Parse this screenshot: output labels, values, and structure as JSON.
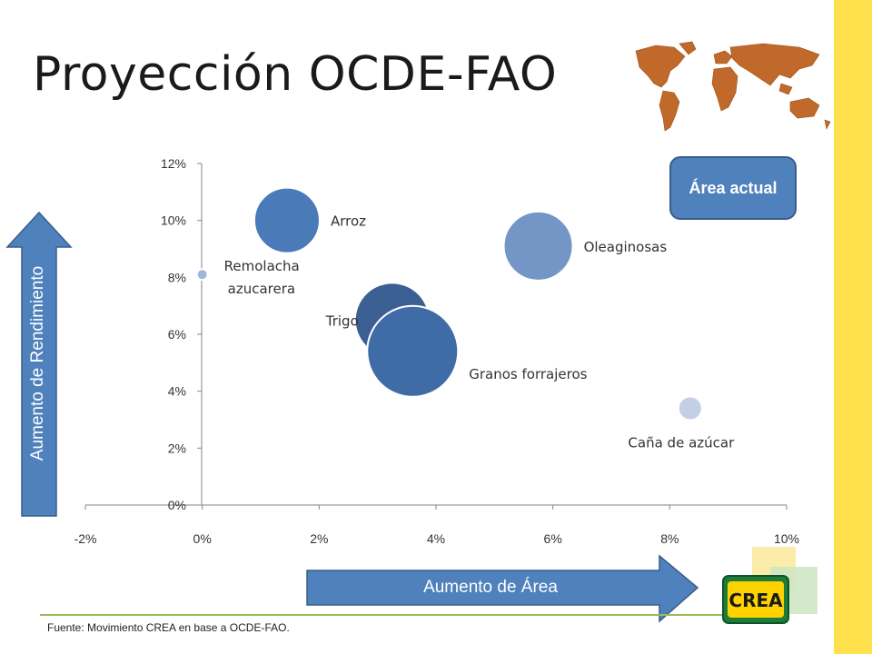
{
  "page": {
    "title": "Proyección OCDE-FAO",
    "source": "Fuente: Movimiento CREA en base a OCDE-FAO.",
    "logo_text": "CREA"
  },
  "legend": {
    "bubble_meaning": "Área actual"
  },
  "arrows": {
    "x_label": "Aumento de Área",
    "y_label": "Aumento de Rendimiento"
  },
  "colors": {
    "accent": "#4f81bd",
    "stripe": "#ffe14d",
    "footer_line": "#9bbb59",
    "map": "#c0692a"
  },
  "chart_data": {
    "type": "bubble",
    "title": "",
    "xlabel": "",
    "ylabel": "",
    "xlim": [
      -0.02,
      0.1
    ],
    "ylim": [
      0,
      0.12
    ],
    "x_ticks": [
      "-2%",
      "0%",
      "2%",
      "4%",
      "6%",
      "8%",
      "10%"
    ],
    "y_ticks": [
      "0%",
      "2%",
      "4%",
      "6%",
      "8%",
      "10%",
      "12%"
    ],
    "grid": false,
    "points": [
      {
        "label": "Arroz",
        "x": 0.0145,
        "y": 0.1,
        "size": 36,
        "color": "#4a7ab8"
      },
      {
        "label": "Remolacha azucarera",
        "x": 0.0,
        "y": 0.081,
        "size": 6,
        "color": "#9fb6d9"
      },
      {
        "label": "Oleaginosas",
        "x": 0.0575,
        "y": 0.091,
        "size": 38,
        "color": "#7396c6"
      },
      {
        "label": "Trigo",
        "x": 0.0325,
        "y": 0.065,
        "size": 41,
        "color": "#3b5f92"
      },
      {
        "label": "Granos forrajeros",
        "x": 0.036,
        "y": 0.054,
        "size": 50,
        "color": "#3f6ba6"
      },
      {
        "label": "Caña de azúcar",
        "x": 0.0835,
        "y": 0.034,
        "size": 13,
        "color": "#c2cfe6"
      }
    ]
  }
}
